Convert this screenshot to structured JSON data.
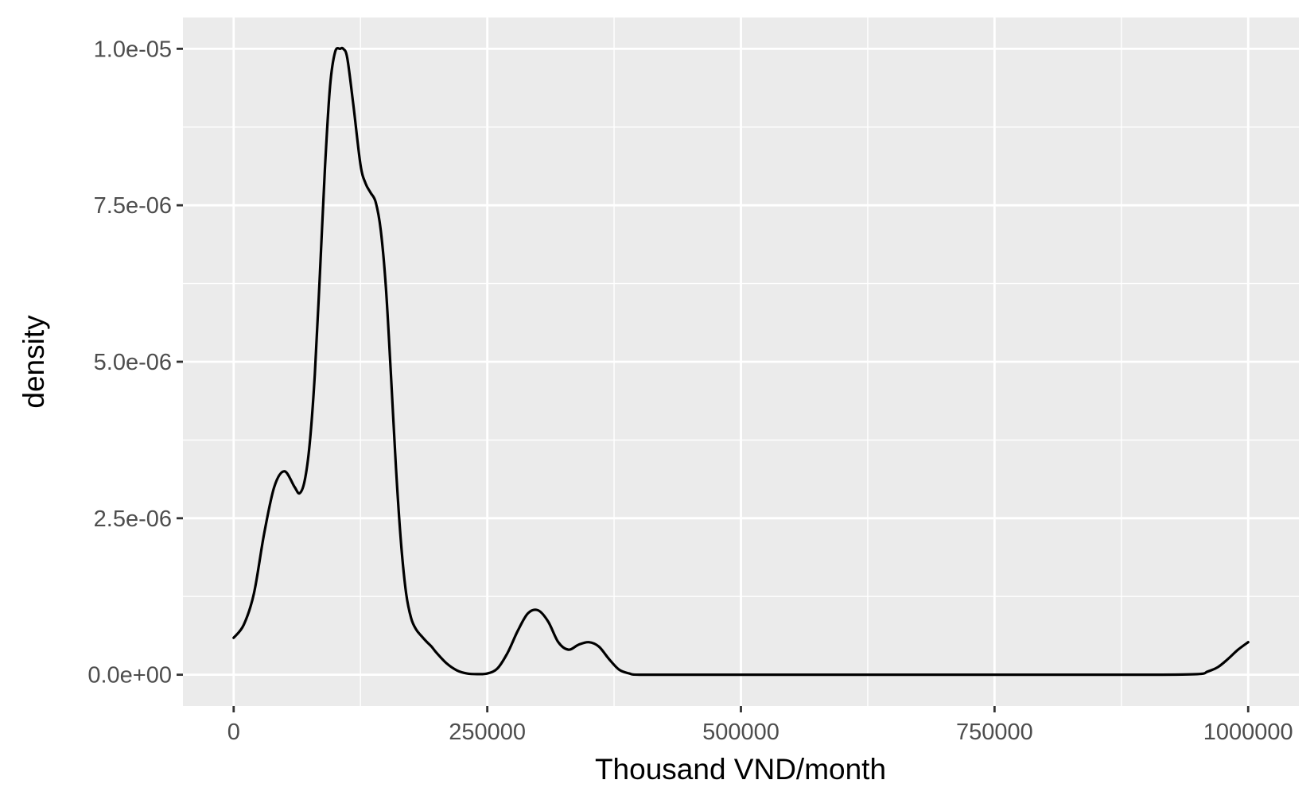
{
  "chart_data": {
    "type": "line",
    "title": "",
    "xlabel": "Thousand VND/month",
    "ylabel": "density",
    "xlim": [
      -50000,
      1050000
    ],
    "ylim": [
      -5e-07,
      1.05e-05
    ],
    "x_ticks": [
      {
        "value": 0,
        "label": "0"
      },
      {
        "value": 250000,
        "label": "250000"
      },
      {
        "value": 500000,
        "label": "500000"
      },
      {
        "value": 750000,
        "label": "750000"
      },
      {
        "value": 1000000,
        "label": "1000000"
      }
    ],
    "x_minor_ticks": [
      125000,
      375000,
      625000,
      875000
    ],
    "y_ticks": [
      {
        "value": 0,
        "label": "0.0e+00"
      },
      {
        "value": 2.5e-06,
        "label": "2.5e-06"
      },
      {
        "value": 5e-06,
        "label": "5.0e-06"
      },
      {
        "value": 7.5e-06,
        "label": "7.5e-06"
      },
      {
        "value": 1e-05,
        "label": "1.0e-05"
      }
    ],
    "y_minor_ticks": [
      1.25e-06,
      3.75e-06,
      6.25e-06,
      8.75e-06
    ],
    "grid": true,
    "legend": "none",
    "colors": {
      "panel_background": "#EBEBEB",
      "grid": "#FFFFFF",
      "line": "#000000",
      "tick_label": "#4D4D4D",
      "tick_mark": "#333333",
      "axis_title": "#000000"
    },
    "series": [
      {
        "x": [
          0,
          10000,
          20000,
          30000,
          40000,
          50000,
          60000,
          65000,
          70000,
          75000,
          80000,
          85000,
          90000,
          95000,
          100000,
          105000,
          108000,
          112000,
          118000,
          125000,
          130000,
          135000,
          140000,
          145000,
          150000,
          155000,
          160000,
          165000,
          170000,
          175000,
          180000,
          185000,
          190000,
          195000,
          200000,
          210000,
          220000,
          230000,
          240000,
          250000,
          260000,
          270000,
          280000,
          290000,
          300000,
          310000,
          320000,
          330000,
          340000,
          350000,
          360000,
          370000,
          380000,
          390000,
          400000,
          450000,
          500000,
          600000,
          700000,
          800000,
          900000,
          950000,
          960000,
          970000,
          980000,
          990000,
          1000000
        ],
        "y": [
          5.9e-07,
          8e-07,
          1.3e-06,
          2.25e-06,
          3e-06,
          3.25e-06,
          3e-06,
          2.9e-06,
          3.1e-06,
          3.7e-06,
          4.8e-06,
          6.4e-06,
          8.1e-06,
          9.4e-06,
          9.95e-06,
          1e-05,
          1e-05,
          9.85e-06,
          9.1e-06,
          8.15e-06,
          7.85e-06,
          7.7e-06,
          7.55e-06,
          7.1e-06,
          6.2e-06,
          4.8e-06,
          3.3e-06,
          2.1e-06,
          1.3e-06,
          9e-07,
          7.2e-07,
          6.2e-07,
          5.3e-07,
          4.5e-07,
          3.5e-07,
          1.8e-07,
          7e-08,
          2e-08,
          1e-08,
          2e-08,
          1e-07,
          3.5e-07,
          7e-07,
          9.8e-07,
          1.03e-06,
          8.5e-07,
          5.2e-07,
          4e-07,
          4.8e-07,
          5.2e-07,
          4.5e-07,
          2.5e-07,
          8e-08,
          2e-08,
          0.0,
          0.0,
          0.0,
          0.0,
          0.0,
          0.0,
          0.0,
          1e-08,
          5e-08,
          1.2e-07,
          2.5e-07,
          4e-07,
          5.2e-07
        ]
      }
    ]
  }
}
